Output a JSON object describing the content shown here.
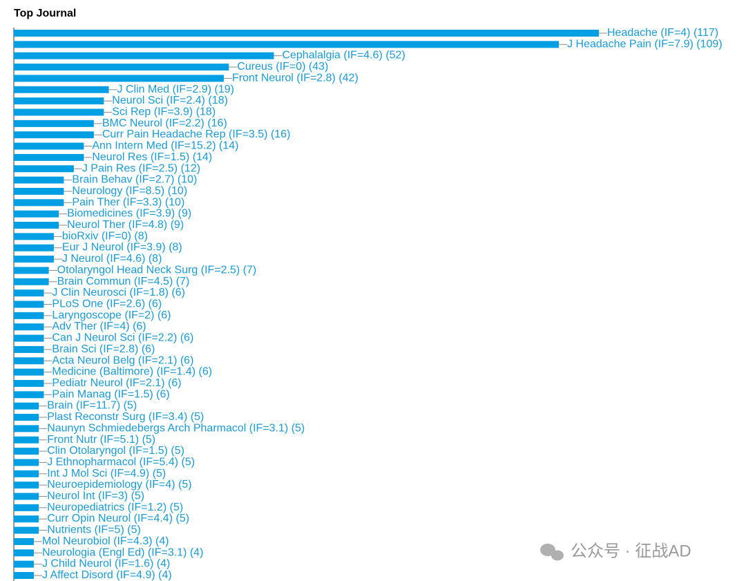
{
  "chart_data": {
    "type": "bar",
    "orientation": "horizontal",
    "title": "Top Journal",
    "color": "#009fe3",
    "categories": [
      "Headache (IF=4)",
      "J Headache Pain (IF=7.9)",
      "Cephalalgia (IF=4.6)",
      "Cureus (IF=0)",
      "Front Neurol (IF=2.8)",
      "J Clin Med (IF=2.9)",
      "Neurol Sci (IF=2.4)",
      "Sci Rep (IF=3.9)",
      "BMC Neurol (IF=2.2)",
      "Curr Pain Headache Rep (IF=3.5)",
      "Ann Intern Med (IF=15.2)",
      "Neurol Res (IF=1.5)",
      "J Pain Res (IF=2.5)",
      "Brain Behav (IF=2.7)",
      "Neurology (IF=8.5)",
      "Pain Ther (IF=3.3)",
      "Biomedicines (IF=3.9)",
      "Neurol Ther (IF=4.8)",
      "bioRxiv (IF=0)",
      "Eur J Neurol (IF=3.9)",
      "J Neurol (IF=4.6)",
      "Otolaryngol Head Neck Surg (IF=2.5)",
      "Brain Commun (IF=4.5)",
      "J Clin Neurosci (IF=1.8)",
      "PLoS One (IF=2.6)",
      "Laryngoscope (IF=2)",
      "Adv Ther (IF=4)",
      "Can J Neurol Sci (IF=2.2)",
      "Brain Sci (IF=2.8)",
      "Acta Neurol Belg (IF=2.1)",
      "Medicine (Baltimore) (IF=1.4)",
      "Pediatr Neurol (IF=2.1)",
      "Pain Manag (IF=1.5)",
      "Brain (IF=11.7)",
      "Plast Reconstr Surg (IF=3.4)",
      "Naunyn Schmiedebergs Arch Pharmacol (IF=3.1)",
      "Front Nutr (IF=5.1)",
      "Clin Otolaryngol (IF=1.5)",
      "J Ethnopharmacol (IF=5.4)",
      "Int J Mol Sci (IF=4.9)",
      "Neuroepidemiology (IF=4)",
      "Neurol Int (IF=3)",
      "Neuropediatrics (IF=1.2)",
      "Curr Opin Neurol (IF=4.4)",
      "Nutrients (IF=5)",
      "Mol Neurobiol (IF=4.3)",
      "Neurologia (Engl Ed) (IF=3.1)",
      "J Child Neurol (IF=1.6)",
      "J Affect Disord (IF=4.9)"
    ],
    "values": [
      117,
      109,
      52,
      43,
      42,
      19,
      18,
      18,
      16,
      16,
      14,
      14,
      12,
      10,
      10,
      10,
      9,
      9,
      8,
      8,
      8,
      7,
      7,
      6,
      6,
      6,
      6,
      6,
      6,
      6,
      6,
      6,
      6,
      5,
      5,
      5,
      5,
      5,
      5,
      5,
      5,
      5,
      5,
      5,
      5,
      4,
      4,
      4,
      4
    ],
    "value_labels": [
      "(117)",
      "(109)",
      "(52)",
      "(43)",
      "(42)",
      "(19)",
      "(18)",
      "(18)",
      "(16)",
      "(16)",
      "(14)",
      "(14)",
      "(12)",
      "(10)",
      "(10)",
      "(10)",
      "(9)",
      "(9)",
      "(8)",
      "(8)",
      "(8)",
      "(7)",
      "(7)",
      "(6)",
      "(6)",
      "(6)",
      "(6)",
      "(6)",
      "(6)",
      "(6)",
      "(6)",
      "(6)",
      "(6)",
      "(5)",
      "(5)",
      "(5)",
      "(5)",
      "(5)",
      "(5)",
      "(5)",
      "(5)",
      "(5)",
      "(5)",
      "(5)",
      "(5)",
      "(4)",
      "(4)",
      "(4)",
      "(4)"
    ]
  },
  "watermark": "公众号 · 征战AD"
}
